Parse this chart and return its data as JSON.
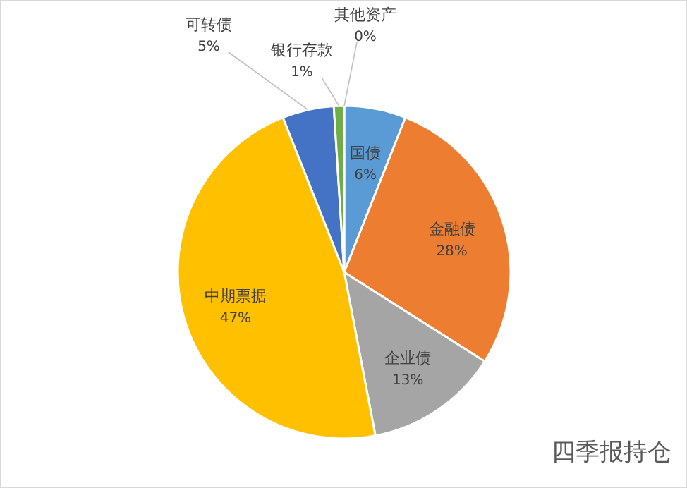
{
  "chart_data": {
    "type": "pie",
    "title": "四季报持仓",
    "categories": [
      "国债",
      "金融债",
      "企业债",
      "中期票据",
      "可转债",
      "银行存款",
      "其他资产"
    ],
    "values": [
      6,
      28,
      13,
      47,
      5,
      1,
      0
    ],
    "colors": [
      "#5b9bd5",
      "#ed7d31",
      "#a5a5a5",
      "#ffc000",
      "#4472c4",
      "#70ad47",
      "#264478"
    ],
    "value_labels": [
      "6%",
      "28%",
      "13%",
      "47%",
      "5%",
      "1%",
      "0%"
    ]
  }
}
